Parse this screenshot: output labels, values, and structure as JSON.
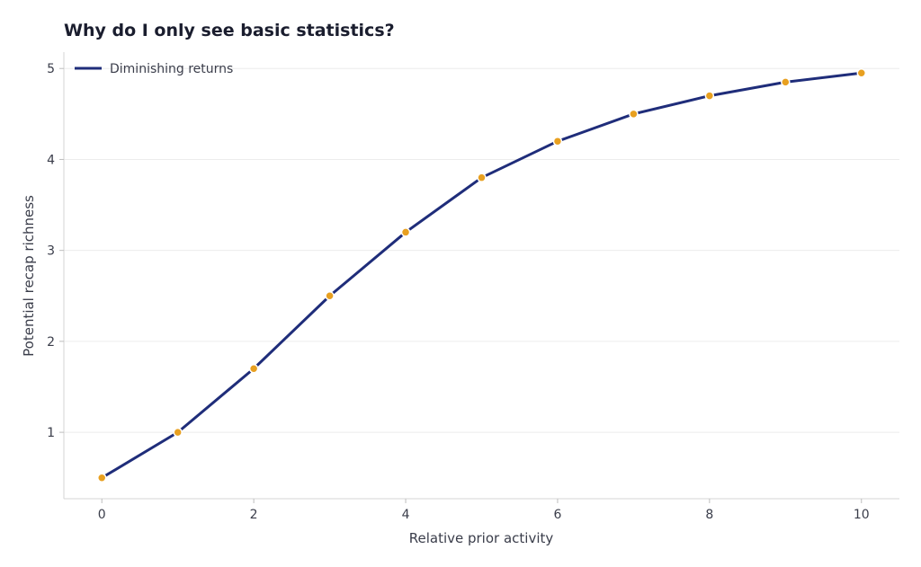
{
  "chart_data": {
    "type": "line",
    "title": "Why do I only see basic statistics?",
    "xlabel": "Relative prior activity",
    "ylabel": "Potential recap richness",
    "xlim": [
      -0.5,
      10.5
    ],
    "ylim": [
      0.27,
      5.18
    ],
    "xticks": [
      0,
      2,
      4,
      6,
      8,
      10
    ],
    "yticks": [
      1,
      2,
      3,
      4,
      5
    ],
    "grid": "horizontal",
    "legend_position": "top-left",
    "series": [
      {
        "name": "Diminishing returns",
        "color": "#1f2d7a",
        "marker_color": "#e8a020",
        "x": [
          0,
          1,
          2,
          3,
          4,
          5,
          6,
          7,
          8,
          9,
          10
        ],
        "y": [
          0.5,
          1.0,
          1.7,
          2.5,
          3.2,
          3.8,
          4.2,
          4.5,
          4.7,
          4.85,
          4.95
        ]
      }
    ]
  }
}
